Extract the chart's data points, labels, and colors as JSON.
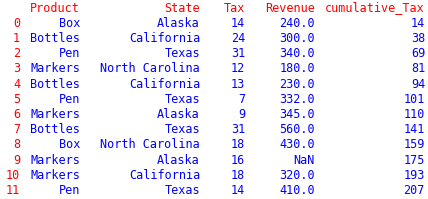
{
  "columns": [
    "Product",
    "State",
    "Tax",
    "Revenue",
    "cumulative_Tax"
  ],
  "index": [
    "0",
    "1",
    "2",
    "3",
    "4",
    "5",
    "6",
    "7",
    "8",
    "9",
    "10",
    "11"
  ],
  "rows": [
    [
      "Box",
      "Alaska",
      "14",
      "240.0",
      "14"
    ],
    [
      "Bottles",
      "California",
      "24",
      "300.0",
      "38"
    ],
    [
      "Pen",
      "Texas",
      "31",
      "340.0",
      "69"
    ],
    [
      "Markers",
      "North Carolina",
      "12",
      "180.0",
      "81"
    ],
    [
      "Bottles",
      "California",
      "13",
      "230.0",
      "94"
    ],
    [
      "Pen",
      "Texas",
      "7",
      "332.0",
      "101"
    ],
    [
      "Markers",
      "Alaska",
      "9",
      "345.0",
      "110"
    ],
    [
      "Bottles",
      "Texas",
      "31",
      "560.0",
      "141"
    ],
    [
      "Box",
      "North Carolina",
      "18",
      "430.0",
      "159"
    ],
    [
      "Markers",
      "Alaska",
      "16",
      "NaN",
      "175"
    ],
    [
      "Markers",
      "California",
      "18",
      "320.0",
      "193"
    ],
    [
      "Pen",
      "Texas",
      "14",
      "410.0",
      "207"
    ]
  ],
  "header_color": "#FF0000",
  "index_color": "#FF0000",
  "data_color": "#0000FF",
  "bg_color": "#FFFFFF",
  "fontsize": 8.5
}
